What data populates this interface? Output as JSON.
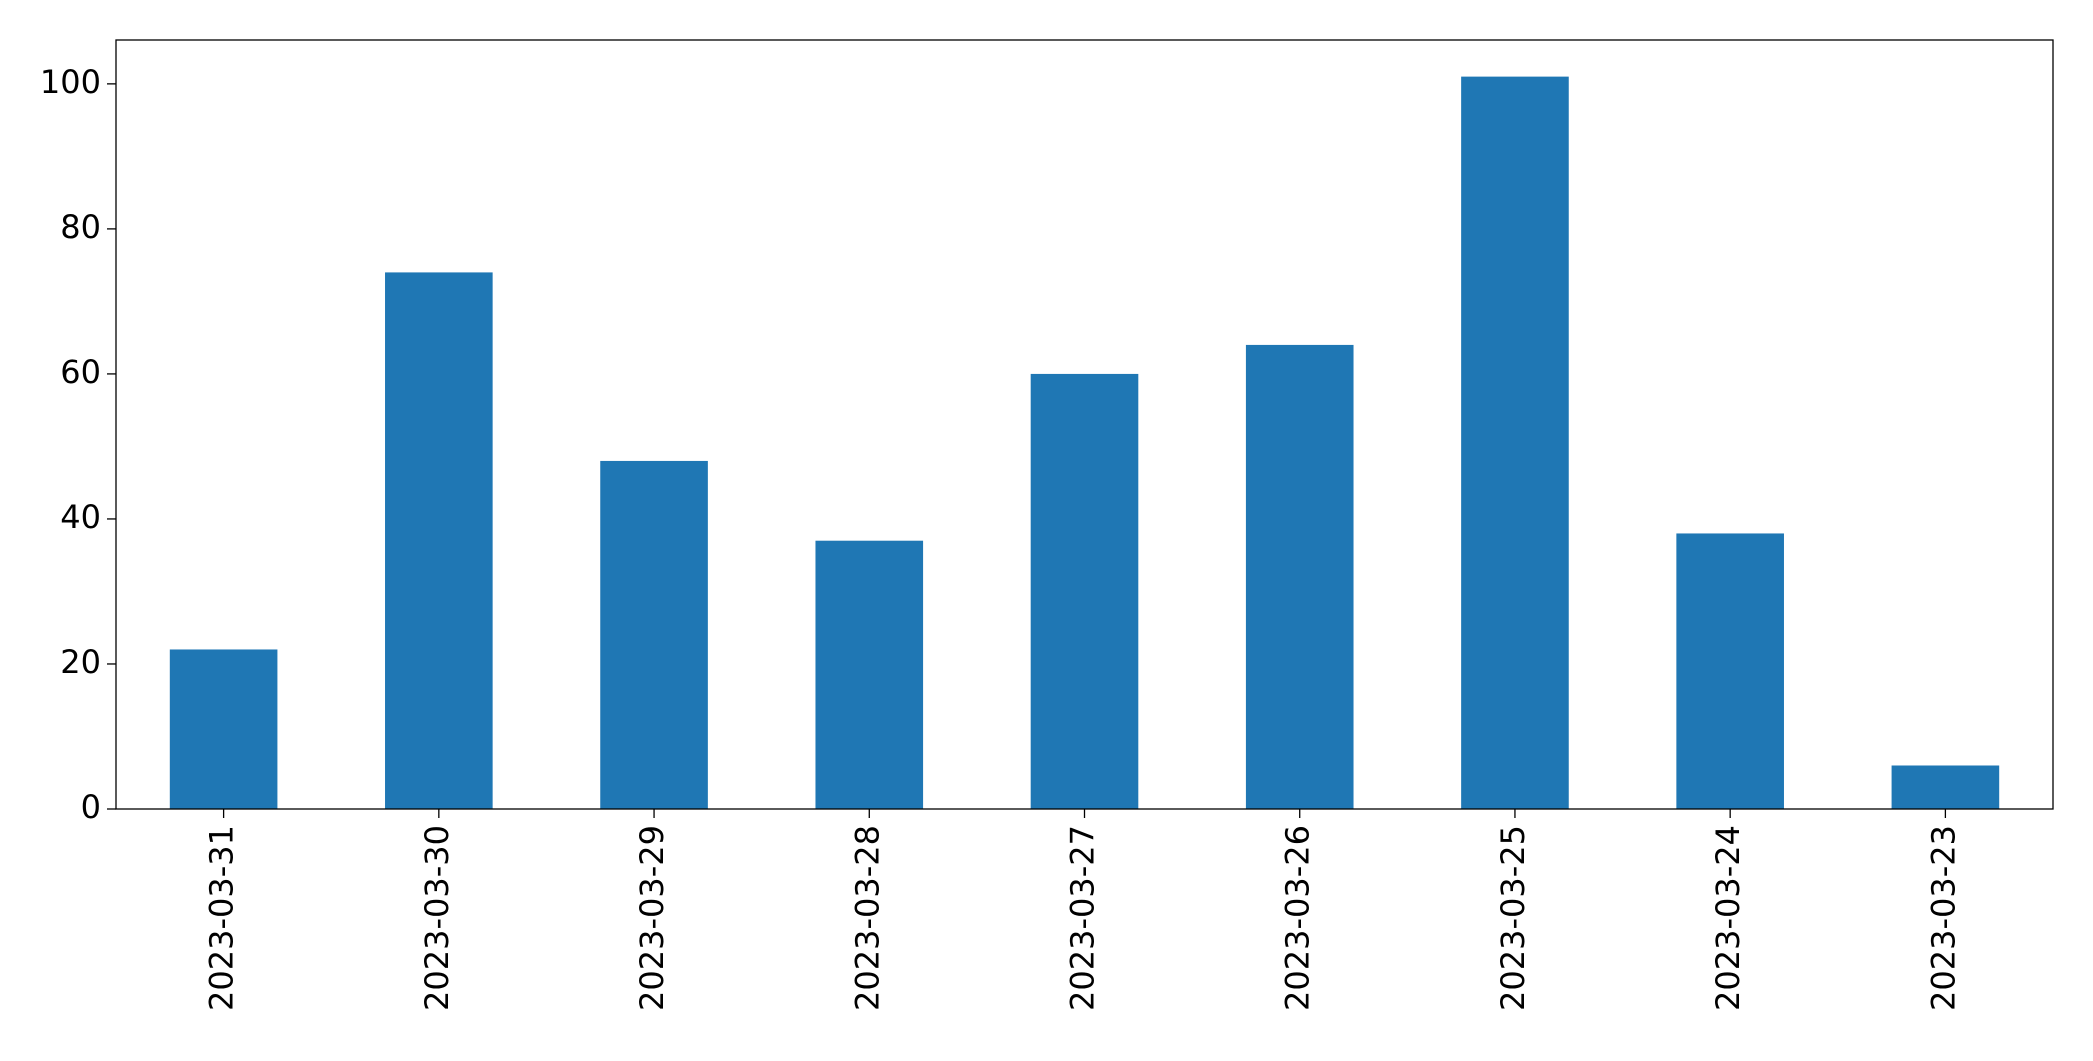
{
  "chart_data": {
    "type": "bar",
    "categories": [
      "2023-03-31",
      "2023-03-30",
      "2023-03-29",
      "2023-03-28",
      "2023-03-27",
      "2023-03-26",
      "2023-03-25",
      "2023-03-24",
      "2023-03-23"
    ],
    "values": [
      22,
      74,
      48,
      37,
      60,
      64,
      101,
      38,
      6
    ],
    "color": "#1f77b4",
    "ylim": [
      0,
      106.05
    ],
    "yticks": [
      0,
      20,
      40,
      60,
      80,
      100
    ],
    "grid": false
  }
}
